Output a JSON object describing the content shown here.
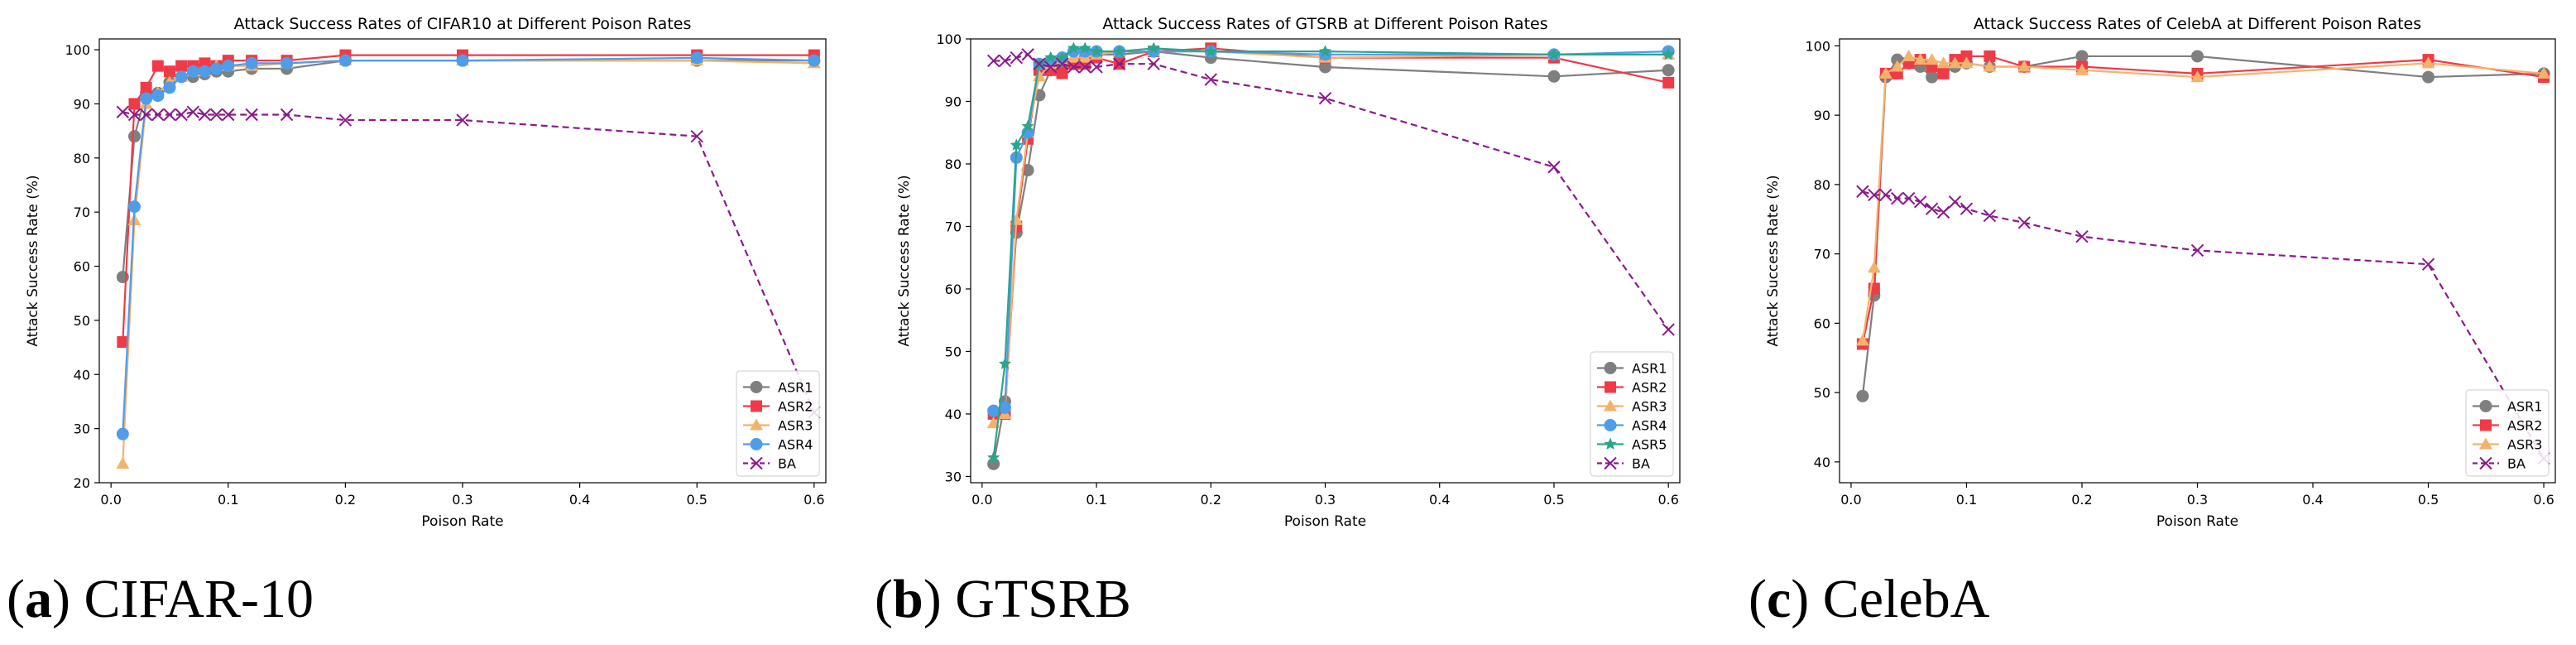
{
  "colors": {
    "ASR1": "#7f7f7f",
    "ASR2": "#f03a47",
    "ASR3": "#f5b26b",
    "ASR4": "#4f9de8",
    "ASR5": "#2ca58d",
    "BA": "#8b1a8b"
  },
  "captions": [
    {
      "letter": "a",
      "name": "CIFAR-10"
    },
    {
      "letter": "b",
      "name": "GTSRB"
    },
    {
      "letter": "c",
      "name": "CelebA"
    }
  ],
  "chart_data": [
    {
      "type": "line",
      "title": "Attack Success Rates of CIFAR10 at Different Poison Rates",
      "xlabel": "Poison Rate",
      "ylabel": "Attack Success Rate (%)",
      "xlim": [
        -0.01,
        0.61
      ],
      "ylim": [
        20,
        102
      ],
      "xticks": [
        0.0,
        0.1,
        0.2,
        0.3,
        0.4,
        0.5,
        0.6
      ],
      "yticks": [
        20,
        30,
        40,
        50,
        60,
        70,
        80,
        90,
        100
      ],
      "legend_position": "lower-right",
      "series": [
        {
          "name": "ASR1",
          "marker": "circle",
          "dash": false,
          "x": [
            0.01,
            0.02,
            0.03,
            0.04,
            0.05,
            0.06,
            0.07,
            0.08,
            0.09,
            0.1,
            0.12,
            0.15,
            0.2,
            0.3,
            0.5,
            0.6
          ],
          "y": [
            58,
            84,
            92,
            92,
            94,
            95,
            95,
            95.5,
            96,
            96,
            96.5,
            96.5,
            98,
            98,
            98,
            98
          ]
        },
        {
          "name": "ASR2",
          "marker": "square",
          "dash": false,
          "x": [
            0.01,
            0.02,
            0.03,
            0.04,
            0.05,
            0.06,
            0.07,
            0.08,
            0.09,
            0.1,
            0.12,
            0.15,
            0.2,
            0.3,
            0.5,
            0.6
          ],
          "y": [
            46,
            90,
            93,
            97,
            96,
            97,
            97,
            97.5,
            97,
            98,
            98,
            98,
            99,
            99,
            99,
            99
          ]
        },
        {
          "name": "ASR3",
          "marker": "triangle",
          "dash": false,
          "x": [
            0.01,
            0.02,
            0.03,
            0.04,
            0.05,
            0.06,
            0.07,
            0.08,
            0.09,
            0.1,
            0.12,
            0.15,
            0.2,
            0.3,
            0.5,
            0.6
          ],
          "y": [
            23.5,
            68.5,
            90,
            92,
            94,
            95,
            96,
            96,
            97,
            97,
            97,
            97.5,
            98,
            98,
            98,
            97.5
          ]
        },
        {
          "name": "ASR4",
          "marker": "circle",
          "dash": false,
          "x": [
            0.01,
            0.02,
            0.03,
            0.04,
            0.05,
            0.06,
            0.07,
            0.08,
            0.09,
            0.1,
            0.12,
            0.15,
            0.2,
            0.3,
            0.5,
            0.6
          ],
          "y": [
            29,
            71,
            91,
            91.5,
            93,
            95,
            96,
            96,
            96.5,
            97,
            97.5,
            97.5,
            98,
            98,
            98.5,
            98
          ]
        },
        {
          "name": "BA",
          "marker": "x",
          "dash": true,
          "x": [
            0.01,
            0.02,
            0.03,
            0.04,
            0.05,
            0.06,
            0.07,
            0.08,
            0.09,
            0.1,
            0.12,
            0.15,
            0.2,
            0.3,
            0.5,
            0.6
          ],
          "y": [
            88.5,
            88,
            88,
            88,
            88,
            88,
            88.5,
            88,
            88,
            88,
            88,
            88,
            87,
            87,
            84,
            33
          ]
        }
      ]
    },
    {
      "type": "line",
      "title": "Attack Success Rates of GTSRB at Different Poison Rates",
      "xlabel": "Poison Rate",
      "ylabel": "Attack Success Rate (%)",
      "xlim": [
        -0.01,
        0.61
      ],
      "ylim": [
        29,
        100
      ],
      "xticks": [
        0.0,
        0.1,
        0.2,
        0.3,
        0.4,
        0.5,
        0.6
      ],
      "yticks": [
        30,
        40,
        50,
        60,
        70,
        80,
        90,
        100
      ],
      "legend_position": "lower-right",
      "series": [
        {
          "name": "ASR1",
          "marker": "circle",
          "dash": false,
          "x": [
            0.01,
            0.02,
            0.03,
            0.04,
            0.05,
            0.06,
            0.07,
            0.08,
            0.09,
            0.1,
            0.12,
            0.15,
            0.2,
            0.3,
            0.5,
            0.6
          ],
          "y": [
            32,
            42,
            69,
            79,
            91,
            95,
            96,
            96,
            97,
            97.5,
            97.5,
            98,
            97,
            95.5,
            94,
            95
          ]
        },
        {
          "name": "ASR2",
          "marker": "square",
          "dash": false,
          "x": [
            0.01,
            0.02,
            0.03,
            0.04,
            0.05,
            0.06,
            0.07,
            0.08,
            0.09,
            0.1,
            0.12,
            0.15,
            0.2,
            0.3,
            0.5,
            0.6
          ],
          "y": [
            40,
            40,
            70,
            84,
            95,
            95,
            94.5,
            96,
            96,
            97,
            96,
            98,
            98.5,
            97,
            97,
            93
          ]
        },
        {
          "name": "ASR3",
          "marker": "triangle",
          "dash": false,
          "x": [
            0.01,
            0.02,
            0.03,
            0.04,
            0.05,
            0.06,
            0.07,
            0.08,
            0.09,
            0.1,
            0.12,
            0.15,
            0.2,
            0.3,
            0.5,
            0.6
          ],
          "y": [
            38.5,
            40,
            71,
            85,
            94,
            96,
            96.5,
            97,
            97,
            97.5,
            98,
            98,
            98,
            97,
            97.5,
            97.5
          ]
        },
        {
          "name": "ASR4",
          "marker": "circle",
          "dash": false,
          "x": [
            0.01,
            0.02,
            0.03,
            0.04,
            0.05,
            0.06,
            0.07,
            0.08,
            0.09,
            0.1,
            0.12,
            0.15,
            0.2,
            0.3,
            0.5,
            0.6
          ],
          "y": [
            40.5,
            41,
            81,
            85,
            96,
            96.5,
            97,
            98,
            98,
            98,
            98,
            98,
            98,
            97.5,
            97.5,
            98
          ]
        },
        {
          "name": "ASR5",
          "marker": "star",
          "dash": false,
          "x": [
            0.01,
            0.02,
            0.03,
            0.04,
            0.05,
            0.06,
            0.07,
            0.08,
            0.09,
            0.1,
            0.12,
            0.15,
            0.2,
            0.3,
            0.5,
            0.6
          ],
          "y": [
            33,
            48,
            83,
            86,
            96,
            97,
            97,
            98.5,
            98.5,
            98,
            98,
            98.5,
            98,
            98,
            97.5,
            97.5
          ]
        },
        {
          "name": "BA",
          "marker": "x",
          "dash": true,
          "x": [
            0.01,
            0.02,
            0.03,
            0.04,
            0.05,
            0.06,
            0.07,
            0.08,
            0.09,
            0.1,
            0.12,
            0.15,
            0.2,
            0.3,
            0.5,
            0.6
          ],
          "y": [
            96.5,
            96.5,
            97,
            97.5,
            96,
            95.5,
            96,
            95.5,
            95.5,
            95.5,
            96,
            96,
            93.5,
            90.5,
            79.5,
            53.5
          ]
        }
      ]
    },
    {
      "type": "line",
      "title": "Attack Success Rates of CelebA at Different Poison Rates",
      "xlabel": "Poison Rate",
      "ylabel": "Attack Success Rate (%)",
      "xlim": [
        -0.01,
        0.61
      ],
      "ylim": [
        37,
        101
      ],
      "xticks": [
        0.0,
        0.1,
        0.2,
        0.3,
        0.4,
        0.5,
        0.6
      ],
      "yticks": [
        40,
        50,
        60,
        70,
        80,
        90,
        100
      ],
      "legend_position": "lower-right",
      "series": [
        {
          "name": "ASR1",
          "marker": "circle",
          "dash": false,
          "x": [
            0.01,
            0.02,
            0.03,
            0.04,
            0.05,
            0.06,
            0.07,
            0.08,
            0.09,
            0.1,
            0.12,
            0.15,
            0.2,
            0.3,
            0.5,
            0.6
          ],
          "y": [
            49.5,
            64,
            95.5,
            98,
            97.5,
            97,
            95.5,
            96.5,
            97,
            97.5,
            97,
            97,
            98.5,
            98.5,
            95.5,
            96
          ]
        },
        {
          "name": "ASR2",
          "marker": "square",
          "dash": false,
          "x": [
            0.01,
            0.02,
            0.03,
            0.04,
            0.05,
            0.06,
            0.07,
            0.08,
            0.09,
            0.1,
            0.12,
            0.15,
            0.2,
            0.3,
            0.5,
            0.6
          ],
          "y": [
            57,
            65,
            96,
            96,
            97.5,
            98,
            97,
            96,
            98,
            98.5,
            98.5,
            97,
            97,
            96,
            98,
            95.5
          ]
        },
        {
          "name": "ASR3",
          "marker": "triangle",
          "dash": false,
          "x": [
            0.01,
            0.02,
            0.03,
            0.04,
            0.05,
            0.06,
            0.07,
            0.08,
            0.09,
            0.1,
            0.12,
            0.15,
            0.2,
            0.3,
            0.5,
            0.6
          ],
          "y": [
            57.5,
            68,
            96,
            97,
            98.5,
            98,
            98,
            97.5,
            97.5,
            97.5,
            97,
            97,
            96.5,
            95.5,
            97.5,
            96
          ]
        },
        {
          "name": "BA",
          "marker": "x",
          "dash": true,
          "x": [
            0.01,
            0.02,
            0.03,
            0.04,
            0.05,
            0.06,
            0.07,
            0.08,
            0.09,
            0.1,
            0.12,
            0.15,
            0.2,
            0.3,
            0.5,
            0.6
          ],
          "y": [
            79,
            78.5,
            78.5,
            78,
            78,
            77.5,
            76.5,
            76,
            77.5,
            76.5,
            75.5,
            74.5,
            72.5,
            70.5,
            68.5,
            40.5
          ]
        }
      ]
    }
  ]
}
